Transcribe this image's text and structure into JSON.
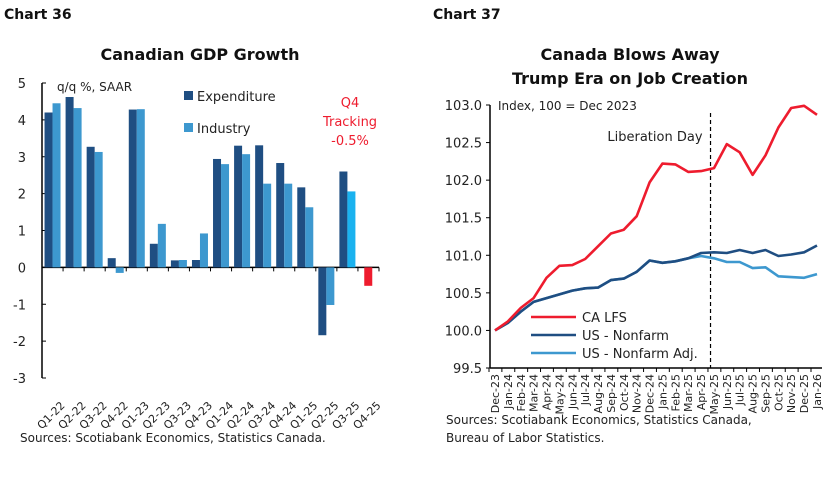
{
  "chart_data": [
    {
      "label": "Chart 36",
      "type": "bar",
      "title": "Canadian GDP Growth",
      "unit_label": "q/q %, SAAR",
      "categories": [
        "Q1-22",
        "Q2-22",
        "Q3-22",
        "Q4-22",
        "Q1-23",
        "Q2-23",
        "Q3-23",
        "Q4-23",
        "Q1-24",
        "Q2-24",
        "Q3-24",
        "Q4-24",
        "Q1-25",
        "Q2-25",
        "Q3-25",
        "Q4-25"
      ],
      "series": [
        {
          "name": "Expenditure",
          "color": "#1f4e82",
          "values": [
            4.2,
            4.62,
            3.27,
            0.25,
            4.28,
            0.64,
            0.19,
            0.2,
            2.94,
            3.3,
            3.31,
            2.83,
            2.17,
            -1.84,
            2.6,
            null
          ]
        },
        {
          "name": "Industry",
          "color": "#3d98cf",
          "values": [
            4.45,
            4.32,
            3.13,
            -0.15,
            4.29,
            1.18,
            0.2,
            0.92,
            2.8,
            3.07,
            2.27,
            2.27,
            1.63,
            -1.02,
            2.06,
            null
          ]
        }
      ],
      "highlight_color": "#1ab2ef",
      "tracking": {
        "category": "Q4-25",
        "value": -0.5,
        "color": "#ee1c2e",
        "annotation": [
          "Q4",
          "Tracking",
          "-0.5%"
        ]
      },
      "ylim": [
        -3,
        5
      ],
      "yticks": [
        5,
        4,
        3,
        2,
        1,
        0,
        -1,
        -2,
        -3
      ],
      "legend_placement": "top-center",
      "grid": false,
      "source": "Sources: Scotiabank Economics, Statistics Canada."
    },
    {
      "label": "Chart 37",
      "type": "line",
      "title": [
        "Canada Blows Away",
        "Trump Era on Job Creation"
      ],
      "unit_label": "Index, 100 = Dec 2023",
      "x": [
        "Dec-23",
        "Jan-24",
        "Feb-24",
        "Mar-24",
        "Apr-24",
        "May-24",
        "Jun-24",
        "Jul-24",
        "Aug-24",
        "Sep-24",
        "Oct-24",
        "Nov-24",
        "Dec-24",
        "Jan-25",
        "Feb-25",
        "Mar-25",
        "Apr-25",
        "May-25",
        "Jun-25",
        "Jul-25",
        "Aug-25",
        "Sep-25",
        "Oct-25",
        "Nov-25",
        "Dec-25",
        "Jan-26"
      ],
      "series": [
        {
          "name": "CA LFS",
          "color": "#ee1c2e",
          "values": [
            100,
            100.12,
            100.3,
            100.43,
            100.7,
            100.86,
            100.87,
            100.95,
            101.12,
            101.29,
            101.34,
            101.52,
            101.97,
            102.22,
            102.21,
            102.11,
            102.12,
            102.16,
            102.48,
            102.37,
            102.07,
            102.33,
            102.7,
            102.96,
            102.99,
            102.87
          ]
        },
        {
          "name": "US - Nonfarm",
          "color": "#1f4e82",
          "values": [
            100,
            100.1,
            100.25,
            100.38,
            100.43,
            100.48,
            100.53,
            100.56,
            100.57,
            100.67,
            100.69,
            100.78,
            100.93,
            100.9,
            100.92,
            100.96,
            101.03,
            101.04,
            101.03,
            101.07,
            101.03,
            101.07,
            100.99,
            101.01,
            101.04,
            101.13
          ]
        },
        {
          "name": "US - Nonfarm Adj.",
          "color": "#3d98cf",
          "values": [
            100,
            100.1,
            100.25,
            100.38,
            100.43,
            100.48,
            100.53,
            100.56,
            100.57,
            100.67,
            100.69,
            100.78,
            100.93,
            100.9,
            100.92,
            100.96,
            100.99,
            100.96,
            100.91,
            100.91,
            100.83,
            100.84,
            100.72,
            100.71,
            100.7,
            100.75
          ]
        }
      ],
      "annotation": {
        "text": "Liberation Day",
        "at": "Apr-25"
      },
      "ylim": [
        99.5,
        103.0
      ],
      "yticks": [
        "103.0",
        "102.5",
        "102.0",
        "101.5",
        "101.0",
        "100.5",
        "100.0",
        "99.5"
      ],
      "legend_placement": "bottom-center",
      "grid": false,
      "source": [
        "Sources: Scotiabank Economics, Statistics Canada,",
        "Bureau of Labor Statistics."
      ]
    }
  ]
}
